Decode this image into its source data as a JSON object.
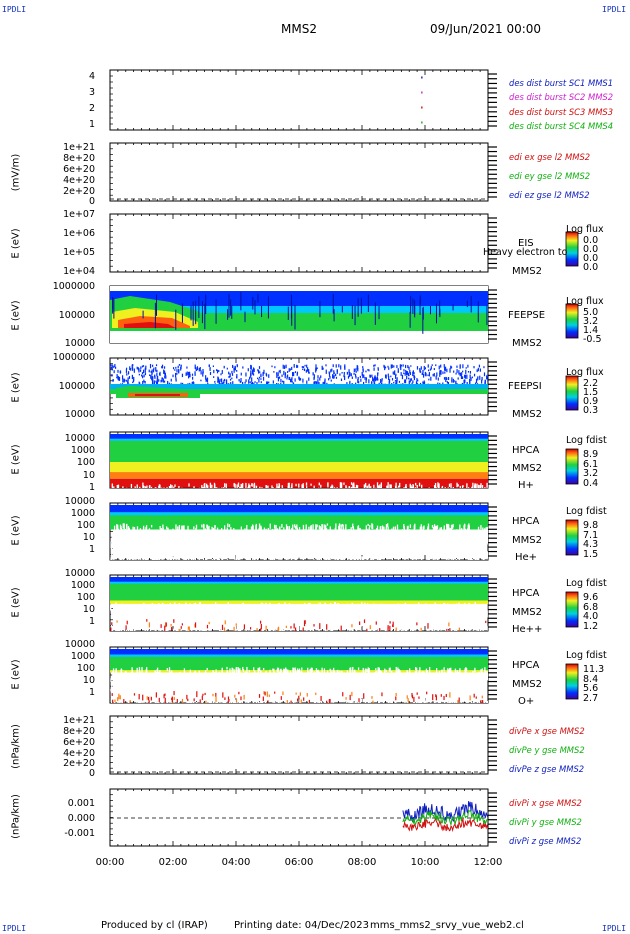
{
  "header": {
    "corner_tl": "IPDLI",
    "corner_tr": "IPDLI",
    "corner_bl": "IPDLI",
    "corner_br": "IPDLI",
    "spacecraft": "MMS2",
    "datetime": "09/Jun/2021 00:00"
  },
  "footer": {
    "produced_by": "Produced by cl (IRAP)",
    "printing_date": "Printing date: 04/Dec/2023",
    "filename": "mms_mms2_srvy_vue_web2.cl"
  },
  "colors": {
    "blue": "#1020c0",
    "magenta": "#d020d0",
    "red": "#d01010",
    "green": "#10b010",
    "fill_blue": "#0030ff",
    "fill_green": "#20d040",
    "fill_yellow": "#f0f020",
    "fill_red": "#e01010"
  },
  "x_axis": {
    "ticks": [
      "00:00",
      "02:00",
      "04:00",
      "06:00",
      "08:00",
      "10:00",
      "12:00"
    ]
  },
  "chart_data": [
    {
      "type": "scatter",
      "name": "burst-availability",
      "ylabel": "",
      "yticks": [
        "1",
        "2",
        "3",
        "4"
      ],
      "ylim": [
        0.5,
        4.5
      ],
      "legend": [
        "des dist burst SC1 MMS1",
        "des dist burst SC2 MMS2",
        "des dist burst SC3 MMS3",
        "des dist burst SC4 MMS4"
      ],
      "legend_colors": [
        "#1020c0",
        "#d020d0",
        "#d01010",
        "#10b010"
      ],
      "points": [
        {
          "x": 9.9,
          "y": 4
        },
        {
          "x": 9.9,
          "y": 3
        },
        {
          "x": 9.9,
          "y": 2
        },
        {
          "x": 9.9,
          "y": 1
        }
      ]
    },
    {
      "type": "line",
      "name": "edi-e-field",
      "ylabel": "(mV/m)",
      "yticks": [
        "0",
        "2e+20",
        "4e+20",
        "6e+20",
        "8e+20",
        "1e+21"
      ],
      "legend": [
        "edi ex gse l2 MMS2",
        "edi ey gse l2 MMS2",
        "edi ez gse l2 MMS2"
      ],
      "legend_colors": [
        "#d01010",
        "#10b010",
        "#1020c0"
      ],
      "zero_line": true
    },
    {
      "type": "heatmap",
      "name": "eis",
      "ylabel": "E (eV)",
      "yticks": [
        "1e+04",
        "1e+05",
        "1e+06",
        "1e+07"
      ],
      "labels": [
        "EIS",
        "Heavy electron to",
        "MMS2"
      ],
      "colorbar": {
        "title": "Log flux",
        "values": [
          "0.0",
          "0.0",
          "0.0",
          "0.0"
        ]
      }
    },
    {
      "type": "heatmap",
      "name": "feeps-electron",
      "ylabel": "E (eV)",
      "yticks": [
        "10000",
        "100000",
        "1000000"
      ],
      "labels": [
        "FEEPSE",
        "MMS2"
      ],
      "colorbar": {
        "title": "Log flux",
        "values": [
          "5.0",
          "3.2",
          "1.4",
          "-0.5"
        ]
      }
    },
    {
      "type": "heatmap",
      "name": "feeps-ion",
      "ylabel": "E (eV)",
      "yticks": [
        "10000",
        "100000",
        "1000000"
      ],
      "labels": [
        "FEEPSI",
        "MMS2"
      ],
      "colorbar": {
        "title": "Log flux",
        "values": [
          "2.2",
          "1.5",
          "0.9",
          "0.3"
        ]
      }
    },
    {
      "type": "heatmap",
      "name": "hpca-h",
      "ylabel": "E (eV)",
      "yticks": [
        "1",
        "10",
        "100",
        "1000",
        "10000"
      ],
      "labels": [
        "HPCA",
        "MMS2",
        "H+"
      ],
      "colorbar": {
        "title": "Log fdist",
        "values": [
          "8.9",
          "6.1",
          "3.2",
          "0.4"
        ]
      }
    },
    {
      "type": "heatmap",
      "name": "hpca-he",
      "ylabel": "E (eV)",
      "yticks": [
        "1",
        "10",
        "100",
        "1000",
        "10000"
      ],
      "labels": [
        "HPCA",
        "MMS2",
        "He+"
      ],
      "colorbar": {
        "title": "Log fdist",
        "values": [
          "9.8",
          "7.1",
          "4.3",
          "1.5"
        ]
      }
    },
    {
      "type": "heatmap",
      "name": "hpca-he2",
      "ylabel": "E (eV)",
      "yticks": [
        "1",
        "10",
        "100",
        "1000",
        "10000"
      ],
      "labels": [
        "HPCA",
        "MMS2",
        "He++"
      ],
      "colorbar": {
        "title": "Log fdist",
        "values": [
          "9.6",
          "6.8",
          "4.0",
          "1.2"
        ]
      }
    },
    {
      "type": "heatmap",
      "name": "hpca-o",
      "ylabel": "E (eV)",
      "yticks": [
        "1",
        "10",
        "100",
        "1000",
        "10000"
      ],
      "labels": [
        "HPCA",
        "MMS2",
        "O+"
      ],
      "colorbar": {
        "title": "Log fdist",
        "values": [
          "11.3",
          "8.4",
          "5.6",
          "2.7"
        ]
      }
    },
    {
      "type": "line",
      "name": "div-pe",
      "ylabel": "(nPa/km)",
      "yticks": [
        "0",
        "2e+20",
        "4e+20",
        "6e+20",
        "8e+20",
        "1e+21"
      ],
      "legend": [
        "divPe x gse MMS2",
        "divPe y gse MMS2",
        "divPe z gse MMS2"
      ],
      "legend_colors": [
        "#d01010",
        "#10b010",
        "#1020c0"
      ],
      "zero_line": true
    },
    {
      "type": "line",
      "name": "div-pi",
      "ylabel": "(nPa/km)",
      "yticks": [
        "-0.001",
        "0.000",
        "0.001"
      ],
      "ylim": [
        -0.0017,
        0.0017
      ],
      "legend": [
        "divPi x gse MMS2",
        "divPi y gse MMS2",
        "divPi z gse MMS2"
      ],
      "legend_colors": [
        "#d01010",
        "#10b010",
        "#1020c0"
      ],
      "zero_line": true,
      "data_start_hour": 9.3
    }
  ]
}
